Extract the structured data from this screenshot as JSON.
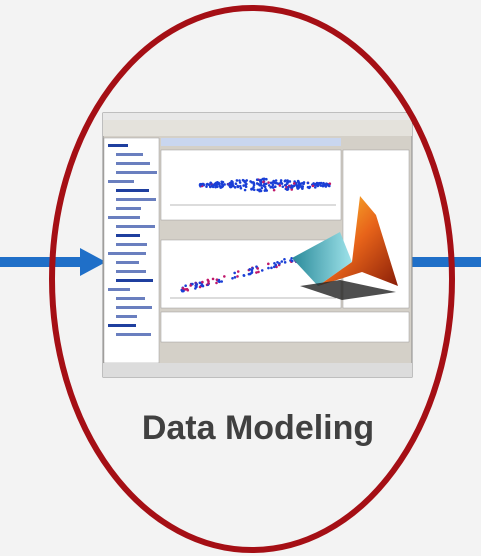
{
  "label": "Data Modeling"
}
